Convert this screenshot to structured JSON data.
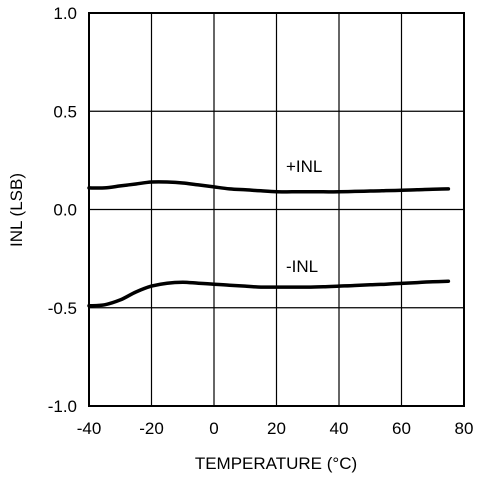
{
  "chart_data": {
    "type": "line",
    "title": "",
    "xlabel": "TEMPERATURE (°C)",
    "ylabel": "INL (LSB)",
    "xlim": [
      -40,
      80
    ],
    "ylim": [
      -1.0,
      1.0
    ],
    "x_ticks": [
      -40,
      -20,
      0,
      20,
      40,
      60,
      80
    ],
    "x_tick_labels": [
      "-40",
      "-20",
      "0",
      "20",
      "40",
      "60",
      "80"
    ],
    "y_ticks": [
      1.0,
      0.5,
      0.0,
      -0.5,
      -1.0
    ],
    "y_tick_labels": [
      "1.0",
      "0.5",
      "0.0",
      "-0.5",
      "-1.0"
    ],
    "grid": true,
    "legend": "none",
    "series": [
      {
        "name": "+INL",
        "color": "#000000",
        "x": [
          -40,
          -35,
          -30,
          -25,
          -20,
          -15,
          -10,
          -5,
          0,
          5,
          10,
          15,
          20,
          25,
          30,
          35,
          40,
          45,
          50,
          55,
          60,
          65,
          70,
          75
        ],
        "y": [
          0.11,
          0.11,
          0.12,
          0.13,
          0.14,
          0.14,
          0.135,
          0.125,
          0.115,
          0.105,
          0.1,
          0.095,
          0.09,
          0.09,
          0.09,
          0.09,
          0.09,
          0.092,
          0.094,
          0.096,
          0.098,
          0.1,
          0.103,
          0.105
        ]
      },
      {
        "name": "-INL",
        "color": "#000000",
        "x": [
          -40,
          -35,
          -30,
          -25,
          -20,
          -15,
          -10,
          -5,
          0,
          5,
          10,
          15,
          20,
          25,
          30,
          35,
          40,
          45,
          50,
          55,
          60,
          65,
          70,
          75
        ],
        "y": [
          -0.49,
          -0.485,
          -0.46,
          -0.42,
          -0.39,
          -0.375,
          -0.37,
          -0.375,
          -0.38,
          -0.385,
          -0.39,
          -0.395,
          -0.395,
          -0.395,
          -0.395,
          -0.393,
          -0.39,
          -0.387,
          -0.383,
          -0.38,
          -0.376,
          -0.372,
          -0.368,
          -0.365
        ]
      }
    ]
  }
}
